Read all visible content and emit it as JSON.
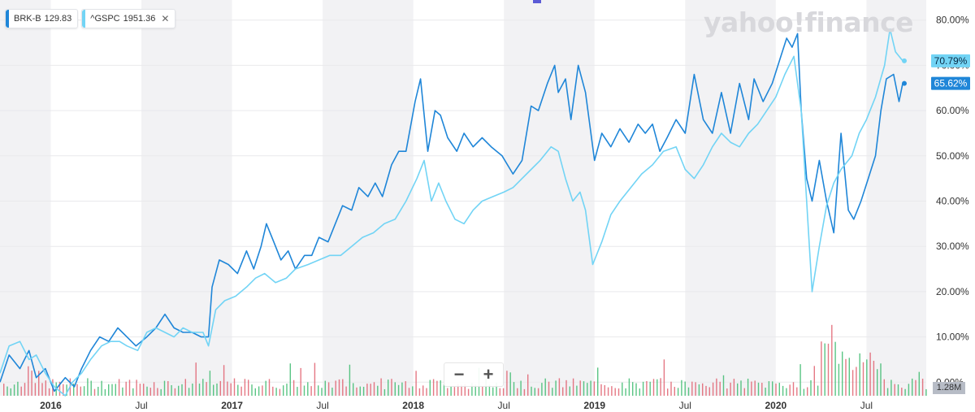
{
  "legend": [
    {
      "symbol": "BRK-B",
      "value": "129.83",
      "color": "#1f86d8",
      "closable": false
    },
    {
      "symbol": "^GSPC",
      "value": "1951.36",
      "color": "#72d4f5",
      "closable": true
    }
  ],
  "logo_text": "yahoo!finance",
  "zoom": {
    "minus": "−",
    "plus": "+"
  },
  "volume_label": "1.28M",
  "chart_data": {
    "type": "line",
    "title": "",
    "xlabel": "",
    "ylabel": "",
    "x_ticks": [
      "2016",
      "Jul",
      "2017",
      "Jul",
      "2018",
      "Jul",
      "2019",
      "Jul",
      "2020",
      "Jul"
    ],
    "y_ticks": [
      "0.00%",
      "10.00%",
      "20.00%",
      "30.00%",
      "40.00%",
      "50.00%",
      "60.00%",
      "70.00%",
      "80.00%"
    ],
    "ylim": [
      -3,
      83
    ],
    "xlim": [
      2015.72,
      2020.83
    ],
    "grid": true,
    "alternating_year_bands": true,
    "series": [
      {
        "name": "BRK-B",
        "color": "#1f86d8",
        "end_label": "65.62%",
        "points": [
          [
            2015.72,
            0
          ],
          [
            2015.77,
            6
          ],
          [
            2015.83,
            3
          ],
          [
            2015.88,
            7
          ],
          [
            2015.92,
            1
          ],
          [
            2015.97,
            3
          ],
          [
            2016.02,
            -2
          ],
          [
            2016.08,
            1
          ],
          [
            2016.13,
            -1
          ],
          [
            2016.17,
            3
          ],
          [
            2016.22,
            7
          ],
          [
            2016.27,
            10
          ],
          [
            2016.32,
            9
          ],
          [
            2016.37,
            12
          ],
          [
            2016.42,
            10
          ],
          [
            2016.47,
            8
          ],
          [
            2016.53,
            10
          ],
          [
            2016.58,
            12
          ],
          [
            2016.63,
            15
          ],
          [
            2016.68,
            12
          ],
          [
            2016.73,
            11
          ],
          [
            2016.78,
            11
          ],
          [
            2016.83,
            10
          ],
          [
            2016.87,
            10
          ],
          [
            2016.89,
            21
          ],
          [
            2016.93,
            27
          ],
          [
            2016.98,
            26
          ],
          [
            2017.03,
            24
          ],
          [
            2017.08,
            29
          ],
          [
            2017.12,
            25
          ],
          [
            2017.16,
            30
          ],
          [
            2017.19,
            35
          ],
          [
            2017.23,
            31
          ],
          [
            2017.27,
            27
          ],
          [
            2017.31,
            29
          ],
          [
            2017.35,
            25
          ],
          [
            2017.4,
            28
          ],
          [
            2017.44,
            28
          ],
          [
            2017.48,
            32
          ],
          [
            2017.53,
            31
          ],
          [
            2017.57,
            35
          ],
          [
            2017.61,
            39
          ],
          [
            2017.66,
            38
          ],
          [
            2017.7,
            43
          ],
          [
            2017.75,
            41
          ],
          [
            2017.79,
            44
          ],
          [
            2017.83,
            41
          ],
          [
            2017.88,
            48
          ],
          [
            2017.92,
            51
          ],
          [
            2017.96,
            51
          ],
          [
            2018.01,
            62
          ],
          [
            2018.04,
            67
          ],
          [
            2018.08,
            51
          ],
          [
            2018.12,
            60
          ],
          [
            2018.15,
            59
          ],
          [
            2018.19,
            54
          ],
          [
            2018.24,
            51
          ],
          [
            2018.28,
            55
          ],
          [
            2018.33,
            52
          ],
          [
            2018.38,
            54
          ],
          [
            2018.43,
            52
          ],
          [
            2018.49,
            50
          ],
          [
            2018.55,
            46
          ],
          [
            2018.6,
            49
          ],
          [
            2018.65,
            61
          ],
          [
            2018.69,
            60
          ],
          [
            2018.74,
            66
          ],
          [
            2018.78,
            70
          ],
          [
            2018.8,
            64
          ],
          [
            2018.84,
            67
          ],
          [
            2018.87,
            58
          ],
          [
            2018.91,
            70
          ],
          [
            2018.95,
            64
          ],
          [
            2019.0,
            49
          ],
          [
            2019.04,
            55
          ],
          [
            2019.09,
            52
          ],
          [
            2019.14,
            56
          ],
          [
            2019.19,
            53
          ],
          [
            2019.24,
            57
          ],
          [
            2019.28,
            55
          ],
          [
            2019.32,
            57
          ],
          [
            2019.36,
            51
          ],
          [
            2019.4,
            54
          ],
          [
            2019.45,
            58
          ],
          [
            2019.5,
            55
          ],
          [
            2019.55,
            68
          ],
          [
            2019.6,
            58
          ],
          [
            2019.65,
            55
          ],
          [
            2019.7,
            64
          ],
          [
            2019.75,
            55
          ],
          [
            2019.8,
            66
          ],
          [
            2019.85,
            58
          ],
          [
            2019.88,
            67
          ],
          [
            2019.93,
            62
          ],
          [
            2019.98,
            66
          ],
          [
            2020.02,
            71
          ],
          [
            2020.06,
            76
          ],
          [
            2020.09,
            74
          ],
          [
            2020.12,
            77
          ],
          [
            2020.14,
            60
          ],
          [
            2020.17,
            45
          ],
          [
            2020.2,
            40
          ],
          [
            2020.24,
            49
          ],
          [
            2020.28,
            40
          ],
          [
            2020.32,
            33
          ],
          [
            2020.36,
            55
          ],
          [
            2020.4,
            38
          ],
          [
            2020.43,
            36
          ],
          [
            2020.47,
            40
          ],
          [
            2020.51,
            45
          ],
          [
            2020.55,
            50
          ],
          [
            2020.58,
            60
          ],
          [
            2020.61,
            67
          ],
          [
            2020.65,
            68
          ],
          [
            2020.68,
            62
          ],
          [
            2020.7,
            66
          ]
        ]
      },
      {
        "name": "^GSPC",
        "color": "#72d4f5",
        "end_label": "70.79%",
        "points": [
          [
            2015.72,
            2
          ],
          [
            2015.77,
            8
          ],
          [
            2015.83,
            9
          ],
          [
            2015.88,
            5
          ],
          [
            2015.92,
            6
          ],
          [
            2015.97,
            2
          ],
          [
            2016.02,
            -1
          ],
          [
            2016.08,
            -3
          ],
          [
            2016.12,
            0
          ],
          [
            2016.17,
            2
          ],
          [
            2016.22,
            5
          ],
          [
            2016.28,
            8
          ],
          [
            2016.33,
            9
          ],
          [
            2016.38,
            9
          ],
          [
            2016.42,
            8
          ],
          [
            2016.48,
            7
          ],
          [
            2016.53,
            11
          ],
          [
            2016.58,
            12
          ],
          [
            2016.63,
            11
          ],
          [
            2016.68,
            10
          ],
          [
            2016.73,
            12
          ],
          [
            2016.78,
            11
          ],
          [
            2016.84,
            11
          ],
          [
            2016.87,
            8
          ],
          [
            2016.91,
            16
          ],
          [
            2016.96,
            18
          ],
          [
            2017.02,
            19
          ],
          [
            2017.08,
            21
          ],
          [
            2017.13,
            23
          ],
          [
            2017.18,
            24
          ],
          [
            2017.24,
            22
          ],
          [
            2017.3,
            23
          ],
          [
            2017.35,
            25
          ],
          [
            2017.42,
            26
          ],
          [
            2017.48,
            27
          ],
          [
            2017.54,
            28
          ],
          [
            2017.6,
            28
          ],
          [
            2017.66,
            30
          ],
          [
            2017.72,
            32
          ],
          [
            2017.78,
            33
          ],
          [
            2017.84,
            35
          ],
          [
            2017.9,
            36
          ],
          [
            2017.96,
            40
          ],
          [
            2018.02,
            45
          ],
          [
            2018.06,
            49
          ],
          [
            2018.1,
            40
          ],
          [
            2018.14,
            44
          ],
          [
            2018.18,
            40
          ],
          [
            2018.23,
            36
          ],
          [
            2018.28,
            35
          ],
          [
            2018.33,
            38
          ],
          [
            2018.38,
            40
          ],
          [
            2018.44,
            41
          ],
          [
            2018.5,
            42
          ],
          [
            2018.55,
            43
          ],
          [
            2018.6,
            45
          ],
          [
            2018.65,
            47
          ],
          [
            2018.7,
            49
          ],
          [
            2018.76,
            52
          ],
          [
            2018.8,
            51
          ],
          [
            2018.84,
            45
          ],
          [
            2018.88,
            40
          ],
          [
            2018.92,
            42
          ],
          [
            2018.95,
            38
          ],
          [
            2018.99,
            26
          ],
          [
            2019.04,
            31
          ],
          [
            2019.09,
            37
          ],
          [
            2019.14,
            40
          ],
          [
            2019.2,
            43
          ],
          [
            2019.26,
            46
          ],
          [
            2019.32,
            48
          ],
          [
            2019.38,
            51
          ],
          [
            2019.45,
            52
          ],
          [
            2019.5,
            47
          ],
          [
            2019.55,
            45
          ],
          [
            2019.6,
            48
          ],
          [
            2019.65,
            52
          ],
          [
            2019.7,
            55
          ],
          [
            2019.75,
            53
          ],
          [
            2019.8,
            52
          ],
          [
            2019.85,
            55
          ],
          [
            2019.9,
            57
          ],
          [
            2019.95,
            60
          ],
          [
            2020.0,
            63
          ],
          [
            2020.05,
            68
          ],
          [
            2020.1,
            72
          ],
          [
            2020.14,
            60
          ],
          [
            2020.17,
            40
          ],
          [
            2020.2,
            20
          ],
          [
            2020.24,
            30
          ],
          [
            2020.28,
            39
          ],
          [
            2020.32,
            44
          ],
          [
            2020.36,
            47
          ],
          [
            2020.42,
            50
          ],
          [
            2020.46,
            55
          ],
          [
            2020.5,
            58
          ],
          [
            2020.55,
            63
          ],
          [
            2020.6,
            70
          ],
          [
            2020.63,
            78
          ],
          [
            2020.66,
            73
          ],
          [
            2020.7,
            71
          ]
        ]
      }
    ],
    "volume": {
      "label": "1.28M",
      "colors": {
        "up": "#3dbb6e",
        "down": "#e0606e"
      }
    }
  }
}
